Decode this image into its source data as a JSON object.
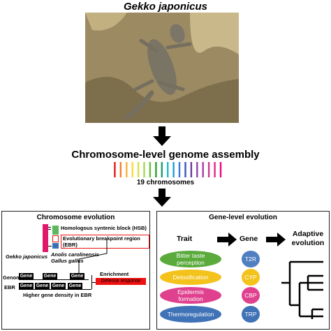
{
  "top": {
    "species_title": "Gekko japonicus"
  },
  "assembly": {
    "headline": "Chromosome-level genome assembly",
    "chromosome_count_label": "19 chromosomes",
    "bar_colors": [
      "#e41a1c",
      "#f57d2a",
      "#fcb03b",
      "#ffd92f",
      "#d8e04a",
      "#a6d854",
      "#66c23a",
      "#2ca02c",
      "#1b9e77",
      "#17becf",
      "#1f9ed9",
      "#3a7bd5",
      "#3b56c4",
      "#6a3d9a",
      "#8e44ad",
      "#b03aa6",
      "#d1398c",
      "#e7298a",
      "#f0027f"
    ]
  },
  "left_panel": {
    "title": "Chromosome evolution",
    "hsb_label": "Homologous syntenic block (HSB)",
    "ebr_label": "Evolutionary breakpoint region (EBR)",
    "species_left": "Gekko japonicus",
    "species_right_1": "Anolis carolinensis",
    "species_right_2": "Gallus gallus",
    "genome_label": "Genome",
    "ebr_row_label": "EBR",
    "gene_label": "Gene",
    "density_label": "Higher gene density in EBR",
    "enrichment_label": "Enrichment analysis",
    "defense_label": "Defense response",
    "colors": {
      "pink": "#e0196b",
      "green": "#5cb85c",
      "blue": "#3c6fb6",
      "red": "#e11"
    }
  },
  "right_panel": {
    "title": "Gene-level evolution",
    "trait_header": "Trait",
    "gene_header": "Gene",
    "adaptive_1": "Adaptive",
    "adaptive_2": "evolution",
    "traits": [
      {
        "label_1": "Bitter taste",
        "label_2": "perception",
        "color": "#5aaa3c",
        "gene": "T2R"
      },
      {
        "label_1": "Detoxification",
        "label_2": "",
        "color": "#f3c21b",
        "gene": "CYP"
      },
      {
        "label_1": "Epidermis",
        "label_2": "formation",
        "color": "#e0418f",
        "gene": "CBP"
      },
      {
        "label_1": "Thermoregulation",
        "label_2": "",
        "color": "#3f72b6",
        "gene": "TRP"
      }
    ]
  }
}
